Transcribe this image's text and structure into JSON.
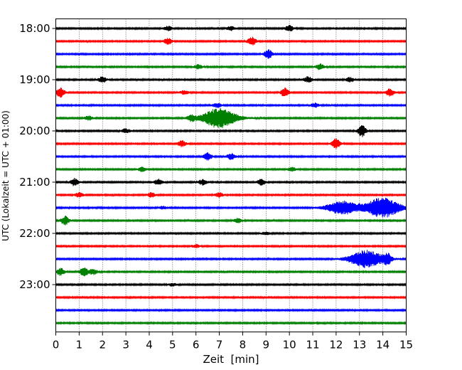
{
  "chart_data": {
    "type": "line",
    "subtype": "helicorder",
    "xlabel": "Zeit  [min]",
    "ylabel": "UTC (Lokalzeit = UTC + 01:00)",
    "xlim": [
      0,
      15
    ],
    "x_ticks": [
      "0",
      "1",
      "2",
      "3",
      "4",
      "5",
      "6",
      "7",
      "8",
      "9",
      "10",
      "11",
      "12",
      "13",
      "14",
      "15"
    ],
    "y_tick_labels": [
      "18:00",
      "19:00",
      "20:00",
      "21:00",
      "22:00",
      "23:00"
    ],
    "grid": "vertical dotted lines at each minute",
    "trace_colors": [
      "#000000",
      "#ff0000",
      "#0000ff",
      "#008000"
    ],
    "traces": [
      {
        "start": "18:00",
        "events": [
          {
            "x": 4.8,
            "amp": 3
          },
          {
            "x": 7.5,
            "amp": 3
          },
          {
            "x": 10.0,
            "amp": 4
          }
        ]
      },
      {
        "start": "18:15",
        "events": [
          {
            "x": 4.8,
            "amp": 4
          },
          {
            "x": 8.4,
            "amp": 6
          }
        ]
      },
      {
        "start": "18:30",
        "events": [
          {
            "x": 9.1,
            "amp": 6
          }
        ]
      },
      {
        "start": "18:45",
        "events": [
          {
            "x": 6.1,
            "amp": 3
          },
          {
            "x": 11.3,
            "amp": 4
          }
        ]
      },
      {
        "start": "19:00",
        "events": [
          {
            "x": 2.0,
            "amp": 4
          },
          {
            "x": 10.8,
            "amp": 4
          },
          {
            "x": 12.6,
            "amp": 3
          }
        ]
      },
      {
        "start": "19:15",
        "events": [
          {
            "x": 0.2,
            "amp": 7
          },
          {
            "x": 5.5,
            "amp": 3
          },
          {
            "x": 9.8,
            "amp": 6
          },
          {
            "x": 14.3,
            "amp": 5
          }
        ]
      },
      {
        "start": "19:30",
        "events": [
          {
            "x": 6.9,
            "amp": 3
          },
          {
            "x": 11.1,
            "amp": 3
          }
        ]
      },
      {
        "start": "19:45",
        "events": [
          {
            "x": 1.4,
            "amp": 3
          },
          {
            "x": 5.8,
            "amp": 4
          },
          {
            "x": 7.0,
            "amp": 14
          }
        ]
      },
      {
        "start": "20:00",
        "events": [
          {
            "x": 3.0,
            "amp": 3
          },
          {
            "x": 13.1,
            "amp": 8
          }
        ]
      },
      {
        "start": "20:15",
        "events": [
          {
            "x": 5.4,
            "amp": 4
          },
          {
            "x": 12.0,
            "amp": 7
          }
        ]
      },
      {
        "start": "20:30",
        "events": [
          {
            "x": 6.5,
            "amp": 5
          },
          {
            "x": 7.5,
            "amp": 4
          }
        ]
      },
      {
        "start": "20:45",
        "events": [
          {
            "x": 3.7,
            "amp": 3
          },
          {
            "x": 10.1,
            "amp": 3
          }
        ]
      },
      {
        "start": "21:00",
        "events": [
          {
            "x": 0.8,
            "amp": 5
          },
          {
            "x": 4.4,
            "amp": 4
          },
          {
            "x": 6.3,
            "amp": 4
          },
          {
            "x": 8.8,
            "amp": 4
          }
        ]
      },
      {
        "start": "21:15",
        "events": [
          {
            "x": 1.0,
            "amp": 3
          },
          {
            "x": 4.1,
            "amp": 3
          },
          {
            "x": 7.0,
            "amp": 3
          }
        ]
      },
      {
        "start": "21:30",
        "events": [
          {
            "x": 4.6,
            "amp": 2
          },
          {
            "x": 12.3,
            "amp": 9
          },
          {
            "x": 14.0,
            "amp": 14
          }
        ]
      },
      {
        "start": "21:45",
        "events": [
          {
            "x": 0.4,
            "amp": 6
          },
          {
            "x": 7.8,
            "amp": 3
          }
        ]
      },
      {
        "start": "22:00",
        "events": [
          {
            "x": 9.0,
            "amp": 2
          }
        ]
      },
      {
        "start": "22:15",
        "events": [
          {
            "x": 6.0,
            "amp": 2
          }
        ]
      },
      {
        "start": "22:30",
        "events": [
          {
            "x": 13.3,
            "amp": 12
          },
          {
            "x": 14.2,
            "amp": 6
          }
        ]
      },
      {
        "start": "22:45",
        "events": [
          {
            "x": 0.2,
            "amp": 5
          },
          {
            "x": 1.2,
            "amp": 6
          },
          {
            "x": 1.6,
            "amp": 4
          }
        ]
      },
      {
        "start": "23:00",
        "events": [
          {
            "x": 5.0,
            "amp": 2
          }
        ]
      },
      {
        "start": "23:15",
        "events": []
      },
      {
        "start": "23:30",
        "events": []
      },
      {
        "start": "23:45",
        "events": []
      }
    ]
  }
}
